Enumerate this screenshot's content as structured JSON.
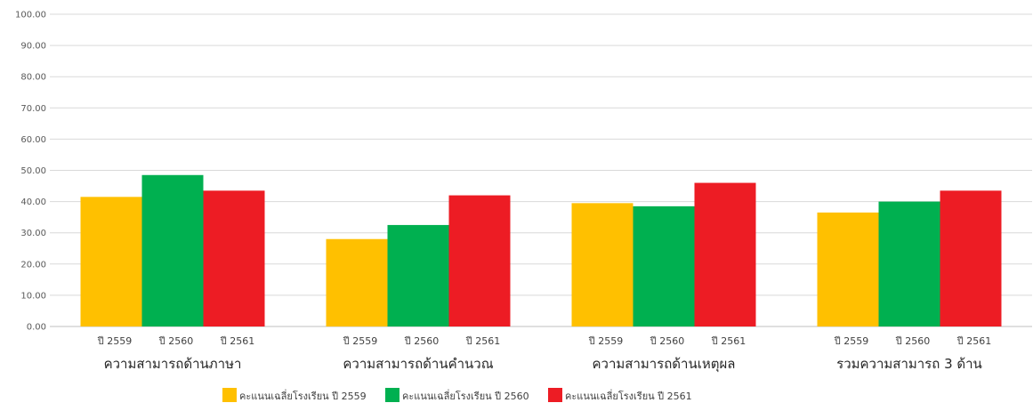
{
  "chart_data": {
    "type": "bar",
    "title": "",
    "xlabel": "",
    "ylabel": "",
    "ylim": [
      0,
      100
    ],
    "y_tick_step": 10,
    "y_tick_labels": [
      "0.00",
      "10.00",
      "20.00",
      "30.00",
      "40.00",
      "50.00",
      "60.00",
      "70.00",
      "80.00",
      "90.00",
      "100.00"
    ],
    "grid": true,
    "legend_position": "bottom",
    "categories": [
      "ความสามารถด้านภาษา",
      "ความสามารถด้านคำนวณ",
      "ความสามารถด้านเหตุผล",
      "รวมความสามารถ 3 ด้าน"
    ],
    "bar_labels": [
      "ปี 2559",
      "ปี 2560",
      "ปี 2561"
    ],
    "series": [
      {
        "name": "คะแนนเฉลี่ยโรงเรียน ปี 2559",
        "color": "#FFC000",
        "values": [
          41.5,
          28.0,
          39.5,
          36.5
        ]
      },
      {
        "name": "คะแนนเฉลี่ยโรงเรียน ปี 2560",
        "color": "#00B050",
        "values": [
          48.5,
          32.5,
          38.5,
          40.0
        ]
      },
      {
        "name": "คะแนนเฉลี่ยโรงเรียน ปี 2561",
        "color": "#ED1C24",
        "values": [
          43.5,
          42.0,
          46.0,
          43.5
        ]
      }
    ]
  }
}
